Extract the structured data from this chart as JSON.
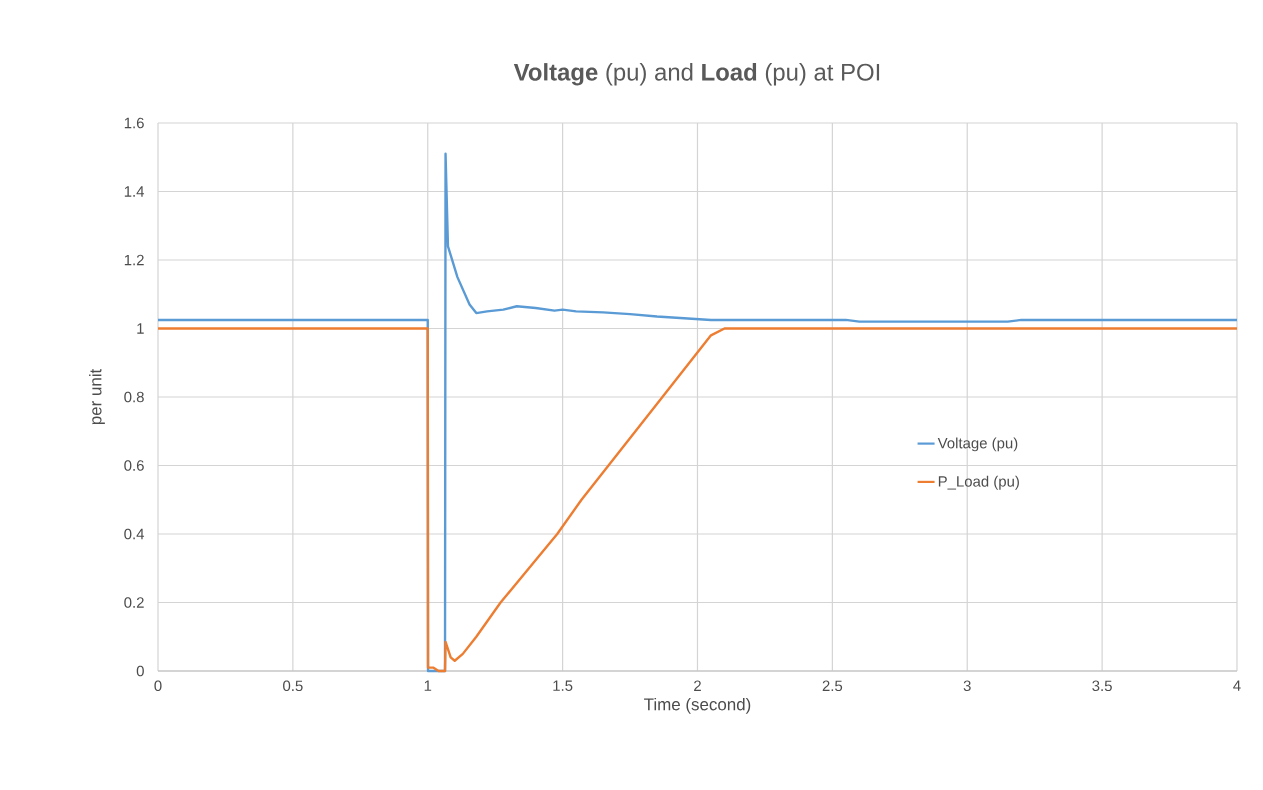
{
  "chart_data": {
    "type": "line",
    "title": "**Voltage** (pu) and **Load** (pu) at POI",
    "xlabel": "Time (second)",
    "ylabel": "per unit",
    "xlim": [
      0,
      4
    ],
    "ylim": [
      0,
      1.6
    ],
    "xticks": [
      0,
      0.5,
      1,
      1.5,
      2,
      2.5,
      3,
      3.5,
      4
    ],
    "yticks": [
      0,
      0.2,
      0.4,
      0.6,
      0.8,
      1,
      1.2,
      1.4,
      1.6
    ],
    "grid": true,
    "legend": "right",
    "marker": "none",
    "line_style": "solid",
    "series": [
      {
        "name": "Voltage (pu)",
        "color": "#5b9bd5",
        "x": [
          0,
          1.0,
          1.001,
          1.064,
          1.066,
          1.075,
          1.11,
          1.155,
          1.18,
          1.22,
          1.28,
          1.33,
          1.4,
          1.47,
          1.5,
          1.55,
          1.65,
          1.75,
          1.85,
          1.95,
          2.05,
          2.55,
          2.6,
          3.15,
          3.2,
          4
        ],
        "values": [
          1.025,
          1.025,
          0,
          0,
          1.51,
          1.24,
          1.15,
          1.07,
          1.045,
          1.05,
          1.055,
          1.065,
          1.06,
          1.052,
          1.055,
          1.05,
          1.047,
          1.042,
          1.035,
          1.03,
          1.025,
          1.025,
          1.02,
          1.02,
          1.025,
          1.025
        ]
      },
      {
        "name": "P_Load (pu)",
        "color": "#ed7d31",
        "x": [
          0,
          1.0,
          1.001,
          1.02,
          1.04,
          1.064,
          1.066,
          1.085,
          1.1,
          1.13,
          1.18,
          1.27,
          1.48,
          1.57,
          1.67,
          1.87,
          2.05,
          2.1,
          4
        ],
        "values": [
          1,
          1,
          0.01,
          0.01,
          0,
          0,
          0.085,
          0.04,
          0.03,
          0.05,
          0.1,
          0.2,
          0.4,
          0.5,
          0.6,
          0.8,
          0.98,
          1,
          1
        ]
      }
    ]
  }
}
